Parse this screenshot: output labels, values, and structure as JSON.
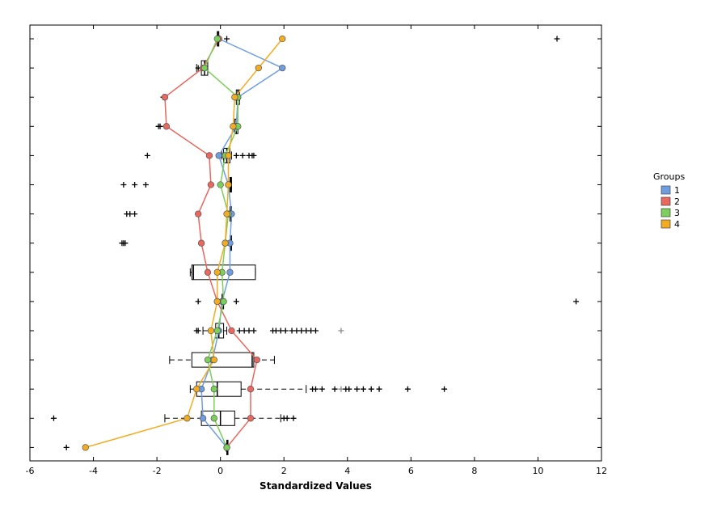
{
  "chart_data": {
    "type": "box",
    "orientation": "horizontal",
    "title": "",
    "xlabel": "Standardized Values",
    "ylabel": "",
    "xlim": [
      -6,
      12
    ],
    "xticks": [
      -6,
      -4,
      -2,
      0,
      2,
      4,
      6,
      8,
      10,
      12
    ],
    "rows": 15,
    "grid": false,
    "legend": {
      "title": "Groups",
      "placement": "right",
      "entries": [
        {
          "name": "1",
          "color": "#6f9ee0"
        },
        {
          "name": "2",
          "color": "#e8675e"
        },
        {
          "name": "3",
          "color": "#7ccf5a"
        },
        {
          "name": "4",
          "color": "#f2ac22"
        }
      ]
    },
    "series": [
      {
        "name": "1",
        "color": "#6f9ee0",
        "values": [
          -0.05,
          1.95,
          0.55,
          0.5,
          -0.05,
          0.25,
          0.35,
          0.3,
          0.3,
          0.05,
          -0.05,
          -0.25,
          -0.6,
          -0.55,
          0.2
        ]
      },
      {
        "name": "2",
        "color": "#e8675e",
        "values": [
          -0.05,
          -0.55,
          -1.75,
          -1.7,
          -0.35,
          -0.3,
          -0.7,
          -0.6,
          -0.4,
          -0.1,
          0.35,
          1.15,
          0.95,
          0.95,
          0.2
        ]
      },
      {
        "name": "3",
        "color": "#7ccf5a",
        "values": [
          -0.1,
          -0.5,
          0.55,
          0.55,
          0.15,
          0.0,
          0.25,
          0.15,
          0.05,
          0.1,
          -0.1,
          -0.4,
          -0.2,
          -0.2,
          0.2
        ]
      },
      {
        "name": "4",
        "color": "#f2ac22",
        "values": [
          1.95,
          1.2,
          0.45,
          0.4,
          0.25,
          0.25,
          0.2,
          0.15,
          -0.1,
          -0.1,
          -0.3,
          -0.2,
          -0.75,
          -1.05,
          -4.25
        ]
      }
    ],
    "boxes": [
      {
        "q1": -0.1,
        "q3": -0.05,
        "median": -0.08,
        "wl": -0.1,
        "wh": -0.05,
        "outliers": [
          0.2,
          10.6
        ]
      },
      {
        "q1": -0.6,
        "q3": -0.4,
        "median": -0.5,
        "wl": -0.75,
        "wh": -0.4,
        "outliers": [
          -0.7
        ]
      },
      {
        "q1": 0.5,
        "q3": 0.6,
        "median": 0.55,
        "wl": 0.5,
        "wh": 0.6,
        "outliers": [
          -1.8,
          -1.75
        ]
      },
      {
        "q1": 0.45,
        "q3": 0.55,
        "median": 0.5,
        "wl": 0.4,
        "wh": 0.55,
        "outliers": [
          -1.95,
          -1.9
        ]
      },
      {
        "q1": 0.1,
        "q3": 0.3,
        "median": 0.2,
        "wl": 0.05,
        "wh": 0.35,
        "outliers": [
          -2.3,
          0.5,
          0.7,
          0.9,
          1.0,
          1.05
        ]
      },
      {
        "q1": 0.3,
        "q3": 0.35,
        "median": 0.33,
        "wl": 0.3,
        "wh": 0.35,
        "outliers": [
          -3.05,
          -2.7,
          -2.35
        ]
      },
      {
        "q1": 0.3,
        "q3": 0.35,
        "median": 0.33,
        "wl": 0.3,
        "wh": 0.35,
        "outliers": [
          -2.95,
          -2.85,
          -2.7
        ]
      },
      {
        "q1": 0.3,
        "q3": 0.35,
        "median": 0.33,
        "wl": 0.3,
        "wh": 0.35,
        "outliers": [
          -3.1,
          -3.05,
          -3.0
        ]
      },
      {
        "q1": -0.9,
        "q3": 1.1,
        "median": -0.85,
        "wl": -0.95,
        "wh": 1.1,
        "outliers": []
      },
      {
        "q1": 0.05,
        "q3": 0.1,
        "median": 0.08,
        "wl": 0.05,
        "wh": 0.1,
        "outliers": [
          -0.7,
          0.5,
          11.2
        ]
      },
      {
        "q1": -0.15,
        "q3": 0.1,
        "median": -0.05,
        "wl": -0.55,
        "wh": 0.2,
        "outliers": [
          -0.75,
          -0.7,
          0.6,
          0.75,
          0.9,
          1.05,
          1.65,
          1.75,
          1.9,
          2.05,
          2.25,
          2.4,
          2.55,
          2.7,
          2.85,
          3.0,
          3.8
        ]
      },
      {
        "q1": -0.9,
        "q3": 1.05,
        "median": 1.0,
        "wl": -1.6,
        "wh": 1.7,
        "outliers": []
      },
      {
        "q1": -0.75,
        "q3": 0.65,
        "median": -0.1,
        "wl": -0.95,
        "wh": 2.7,
        "outliers": [
          2.9,
          3.0,
          3.2,
          3.6,
          3.8,
          3.95,
          4.05,
          4.3,
          4.5,
          4.75,
          5.0,
          5.9,
          7.05
        ]
      },
      {
        "q1": -0.6,
        "q3": 0.45,
        "median": 0.0,
        "wl": -1.75,
        "wh": 1.9,
        "outliers": [
          -5.25,
          2.0,
          2.1,
          2.3
        ]
      },
      {
        "q1": 0.2,
        "q3": 0.22,
        "median": 0.21,
        "wl": 0.18,
        "wh": 0.22,
        "outliers": [
          -4.85
        ]
      }
    ]
  }
}
